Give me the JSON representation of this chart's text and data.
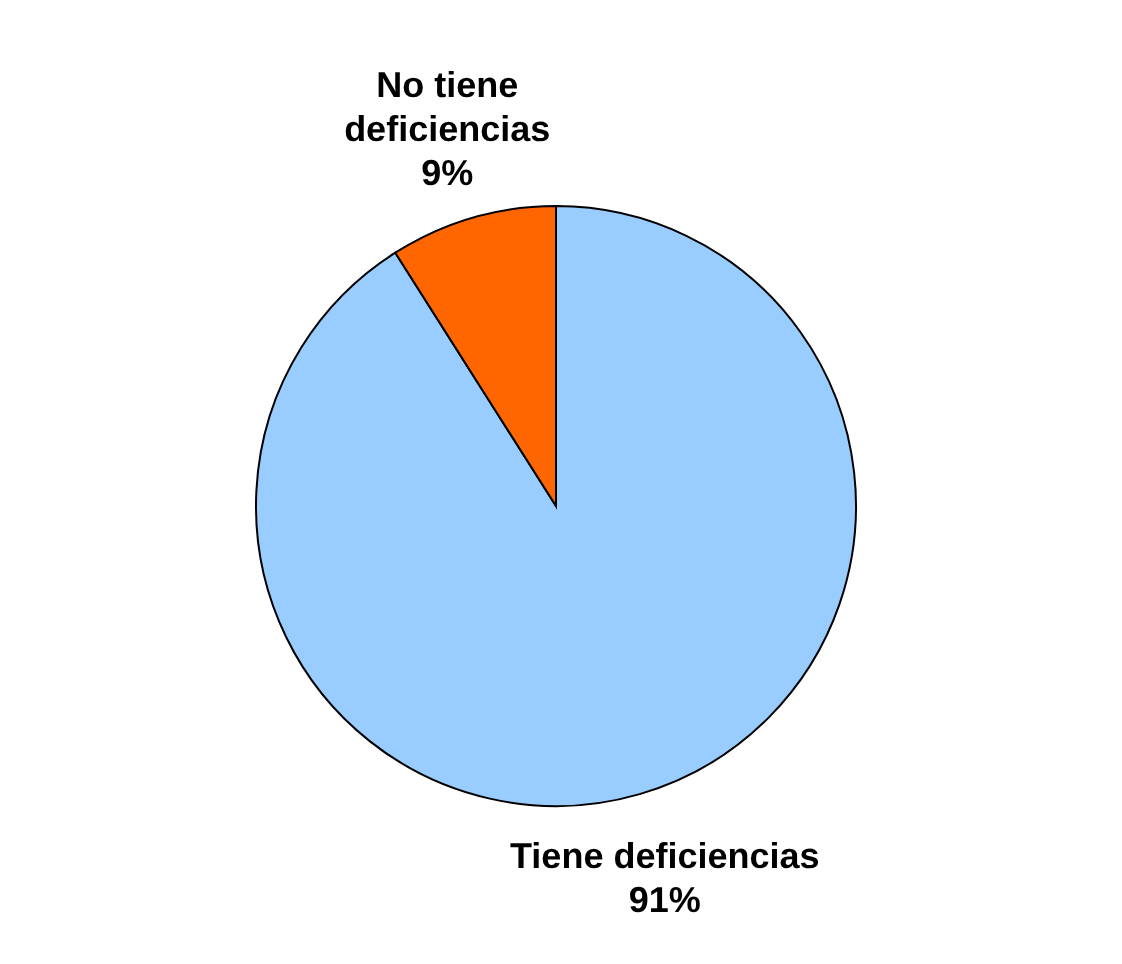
{
  "chart_data": {
    "type": "pie",
    "categories": [
      "Tiene deficiencias",
      "No tiene deficiencias"
    ],
    "values": [
      91,
      9
    ],
    "value_labels": [
      "91%",
      "9%"
    ],
    "colors": [
      "#99ccff",
      "#ff6600"
    ],
    "legend": false
  }
}
